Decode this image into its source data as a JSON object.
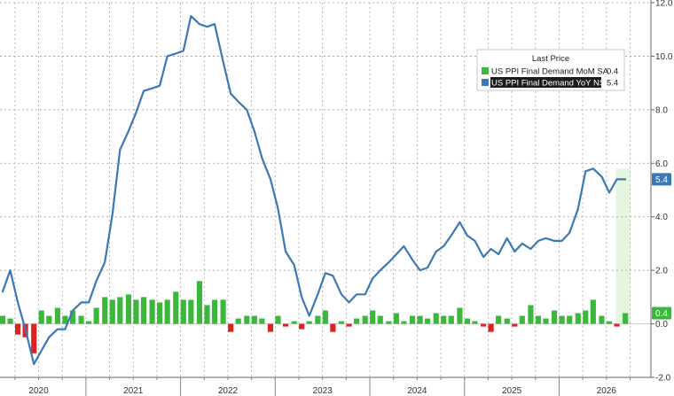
{
  "chart_data": {
    "type": "bar+line",
    "title": "",
    "xlabel": "",
    "ylabel": "",
    "ylim": [
      -2.0,
      12.0
    ],
    "x_range": [
      2019.62,
      2026.33
    ],
    "y_ticks": [
      "-2.0",
      "0.0",
      "2.0",
      "4.0",
      "6.0",
      "8.0",
      "10.0",
      "12.0"
    ],
    "x_tick_labels": [
      {
        "label": "2020",
        "at": 2020.0
      },
      {
        "label": "2021",
        "at": 2021.0
      },
      {
        "label": "2022",
        "at": 2022.0
      },
      {
        "label": "2023",
        "at": 2023.0
      },
      {
        "label": "2024",
        "at": 2024.0
      },
      {
        "label": "2025",
        "at": 2025.0
      },
      {
        "label": "2026",
        "at": 2026.0
      }
    ],
    "year_boundaries": [
      2020.5,
      2021.5,
      2022.5,
      2023.5,
      2024.5,
      2025.5
    ],
    "grid": "dashed",
    "legend": {
      "placement": "top-right",
      "header": "Last Price",
      "entries": [
        {
          "name": "US PPI Final Demand MoM SA",
          "value": "0.4",
          "color": "#3bb83b"
        },
        {
          "name": "US PPI Final Demand YoY NSA",
          "value": "5.4",
          "color": "#3c78b4"
        }
      ]
    },
    "badges": [
      {
        "text": "5.4",
        "y": 5.4,
        "color": "#3c78b4"
      },
      {
        "text": "0.4",
        "y": 0.4,
        "color": "#3bb83b"
      }
    ],
    "highlight_band": {
      "x_start": 2026.1,
      "x_end": 2026.25,
      "color": "#e4f6e0"
    },
    "series": [
      {
        "name": "US PPI Final Demand YoY NSA",
        "kind": "line",
        "color": "#3c78b4",
        "x": [
          2019.62,
          2019.7,
          2019.78,
          2019.86,
          2019.95,
          2020.03,
          2020.11,
          2020.2,
          2020.28,
          2020.36,
          2020.45,
          2020.53,
          2020.61,
          2020.7,
          2020.78,
          2020.86,
          2020.95,
          2021.03,
          2021.11,
          2021.2,
          2021.28,
          2021.36,
          2021.45,
          2021.53,
          2021.61,
          2021.7,
          2021.78,
          2021.86,
          2021.95,
          2022.03,
          2022.11,
          2022.2,
          2022.28,
          2022.36,
          2022.45,
          2022.53,
          2022.61,
          2022.7,
          2022.78,
          2022.86,
          2022.95,
          2023.03,
          2023.11,
          2023.2,
          2023.28,
          2023.36,
          2023.45,
          2023.53,
          2023.61,
          2023.7,
          2023.78,
          2023.86,
          2023.95,
          2024.03,
          2024.11,
          2024.2,
          2024.28,
          2024.36,
          2024.45,
          2024.53,
          2024.61,
          2024.7,
          2024.78,
          2024.86,
          2024.95,
          2025.03,
          2025.11,
          2025.2,
          2025.28,
          2025.36,
          2025.45,
          2025.53,
          2025.61,
          2025.7,
          2025.78,
          2025.86,
          2025.95,
          2026.03,
          2026.11,
          2026.2
        ],
        "values": [
          1.2,
          2.0,
          0.8,
          -0.2,
          -1.5,
          -1.0,
          -0.5,
          -0.2,
          -0.2,
          0.5,
          0.8,
          0.8,
          1.6,
          2.3,
          4.1,
          6.5,
          7.2,
          7.9,
          8.7,
          8.8,
          8.9,
          10.0,
          10.1,
          10.2,
          11.5,
          11.2,
          11.1,
          11.2,
          9.8,
          8.6,
          8.3,
          8.0,
          7.2,
          6.2,
          5.4,
          4.3,
          2.7,
          2.2,
          1.0,
          0.3,
          1.1,
          1.9,
          1.8,
          1.1,
          0.8,
          1.1,
          1.1,
          1.7,
          2.0,
          2.3,
          2.6,
          2.9,
          2.4,
          2.0,
          2.1,
          2.7,
          2.9,
          3.3,
          3.8,
          3.3,
          3.1,
          2.5,
          2.8,
          2.6,
          3.2,
          2.7,
          3.0,
          2.8,
          3.1,
          3.2,
          3.1,
          3.1,
          3.4,
          4.3,
          5.7,
          5.8,
          5.5,
          4.9,
          5.4,
          5.4
        ]
      },
      {
        "name": "US PPI Final Demand MoM SA",
        "kind": "bar",
        "color_positive": "#3bb83b",
        "color_negative": "#dd2222",
        "x": [
          2019.62,
          2019.7,
          2019.78,
          2019.86,
          2019.95,
          2020.03,
          2020.11,
          2020.2,
          2020.28,
          2020.36,
          2020.45,
          2020.53,
          2020.61,
          2020.7,
          2020.78,
          2020.86,
          2020.95,
          2021.03,
          2021.11,
          2021.2,
          2021.28,
          2021.36,
          2021.45,
          2021.53,
          2021.61,
          2021.7,
          2021.78,
          2021.86,
          2021.95,
          2022.03,
          2022.11,
          2022.2,
          2022.28,
          2022.36,
          2022.45,
          2022.53,
          2022.61,
          2022.7,
          2022.78,
          2022.86,
          2022.95,
          2023.03,
          2023.11,
          2023.2,
          2023.28,
          2023.36,
          2023.45,
          2023.53,
          2023.61,
          2023.7,
          2023.78,
          2023.86,
          2023.95,
          2024.03,
          2024.11,
          2024.2,
          2024.28,
          2024.36,
          2024.45,
          2024.53,
          2024.61,
          2024.7,
          2024.78,
          2024.86,
          2024.95,
          2025.03,
          2025.11,
          2025.2,
          2025.28,
          2025.36,
          2025.45,
          2025.53,
          2025.61,
          2025.7,
          2025.78,
          2025.86,
          2025.95,
          2026.03,
          2026.11,
          2026.2
        ],
        "values": [
          0.3,
          0.2,
          -0.4,
          -0.5,
          -1.1,
          0.5,
          0.3,
          0.6,
          0.3,
          0.5,
          0.3,
          0.1,
          0.6,
          1.0,
          0.9,
          1.0,
          1.1,
          0.9,
          1.0,
          0.9,
          0.8,
          0.9,
          1.2,
          0.9,
          0.9,
          1.6,
          0.7,
          0.9,
          0.9,
          -0.3,
          0.2,
          0.3,
          0.3,
          0.2,
          -0.3,
          0.3,
          -0.1,
          0.1,
          -0.2,
          0.1,
          0.3,
          0.5,
          -0.3,
          0.1,
          -0.1,
          0.2,
          0.3,
          0.5,
          0.3,
          0.1,
          0.4,
          0.1,
          0.3,
          0.3,
          0.2,
          0.4,
          0.3,
          0.3,
          0.6,
          0.2,
          0.1,
          -0.1,
          -0.3,
          0.3,
          0.2,
          -0.1,
          0.3,
          0.7,
          0.3,
          0.2,
          0.5,
          0.3,
          0.3,
          0.4,
          0.5,
          0.9,
          0.3,
          0.1,
          -0.1,
          0.4
        ]
      }
    ]
  }
}
